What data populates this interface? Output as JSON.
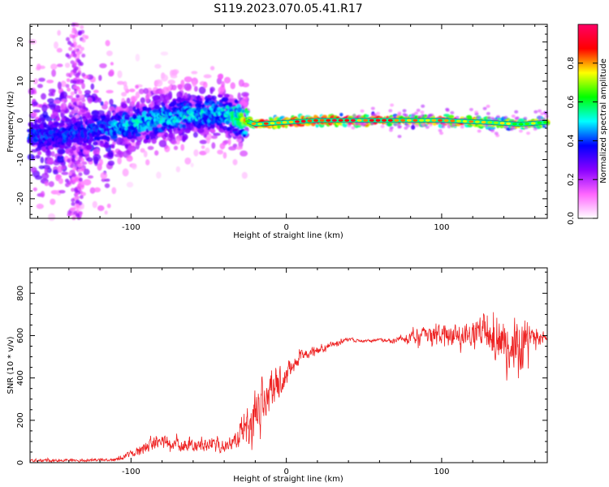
{
  "title": "S119.2023.070.05.41.R17",
  "chart_data": [
    {
      "type": "heatmap",
      "xlabel": "Height of straight line (km)",
      "ylabel": "Frequency (Hz)",
      "xlim": [
        -165,
        168
      ],
      "ylim": [
        -25,
        24.5
      ],
      "xticks": [
        -100,
        0,
        100
      ],
      "yticks": [
        -20,
        -10,
        0,
        10,
        20
      ],
      "colorbar": {
        "label": "Normalized spectral amplitude",
        "range": [
          0,
          1
        ],
        "ticks": [
          "0.0",
          "0.2",
          "0.4",
          "0.6",
          "0.8"
        ],
        "tick_values": [
          0,
          0.2,
          0.4,
          0.6,
          0.8
        ],
        "colors": [
          "#ffffff",
          "#ff66ff",
          "#8800ff",
          "#0000ff",
          "#00ffff",
          "#00ff00",
          "#ffff00",
          "#ff0000",
          "#ff0066"
        ]
      },
      "ridge": {
        "description": "Dominant frequency ridge near 0 Hz",
        "x": [
          -165,
          -130,
          -100,
          -70,
          -40,
          -30,
          -20,
          0,
          20,
          50,
          80,
          100,
          130,
          150,
          168
        ],
        "y": [
          -4,
          -3,
          -1,
          1,
          2,
          0.5,
          -1,
          -0.5,
          0,
          0,
          0,
          0,
          -0.5,
          -1,
          -0.5
        ],
        "amplitude": [
          0.3,
          0.3,
          0.4,
          0.4,
          0.4,
          0.5,
          0.8,
          0.85,
          0.9,
          0.9,
          0.8,
          0.85,
          0.75,
          0.7,
          0.7
        ]
      }
    },
    {
      "type": "line",
      "xlabel": "Height of straight line (km)",
      "ylabel": "SNR (10 * v/v)",
      "xlim": [
        -165,
        168
      ],
      "ylim": [
        0,
        920
      ],
      "xticks": [
        -100,
        0,
        100
      ],
      "yticks": [
        0,
        200,
        400,
        600,
        800
      ],
      "color": "#ee2222",
      "envelope": {
        "x": [
          -165,
          -150,
          -130,
          -110,
          -100,
          -90,
          -80,
          -60,
          -40,
          -30,
          -25,
          -20,
          -15,
          -10,
          -5,
          0,
          5,
          10,
          20,
          30,
          40,
          50,
          60,
          70,
          80,
          90,
          100,
          110,
          120,
          130,
          140,
          150,
          160,
          168
        ],
        "mean": [
          10,
          10,
          10,
          15,
          40,
          80,
          90,
          80,
          80,
          120,
          180,
          250,
          290,
          330,
          380,
          420,
          470,
          500,
          530,
          560,
          580,
          575,
          580,
          575,
          590,
          600,
          605,
          610,
          620,
          600,
          570,
          560,
          600,
          590
        ],
        "spread": [
          10,
          10,
          8,
          10,
          25,
          45,
          50,
          40,
          45,
          70,
          120,
          150,
          120,
          120,
          100,
          80,
          60,
          40,
          30,
          20,
          15,
          10,
          10,
          15,
          40,
          60,
          60,
          70,
          90,
          110,
          150,
          190,
          80,
          20
        ]
      }
    }
  ]
}
